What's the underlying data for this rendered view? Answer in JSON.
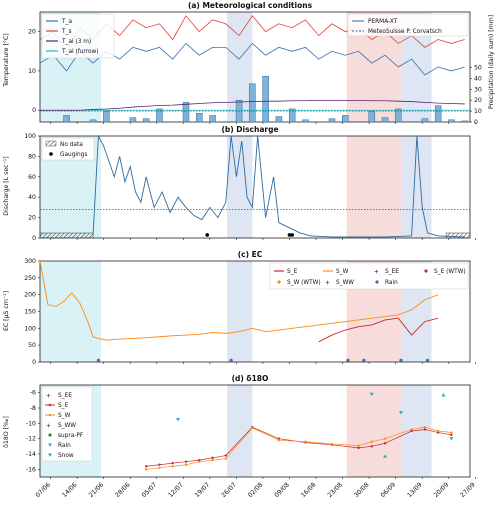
{
  "x_dates": [
    "07/06",
    "14/06",
    "21/06",
    "28/06",
    "05/07",
    "12/07",
    "19/07",
    "26/07",
    "02/08",
    "09/08",
    "16/08",
    "23/08",
    "30/08",
    "06/09",
    "13/09",
    "20/09",
    "27/09"
  ],
  "shaded_periods": [
    {
      "color": "#d9f2f5",
      "from": 0.0,
      "to": 2.3
    },
    {
      "color": "#dde6f2",
      "from": 7.05,
      "to": 8.0
    },
    {
      "color": "#f7dcdc",
      "from": 11.55,
      "to": 13.6
    },
    {
      "color": "#dde6f2",
      "from": 13.6,
      "to": 14.75
    }
  ],
  "panels": {
    "a": {
      "title": "(a) Meteorological conditions",
      "ylabel_left": "Temperature [°C]",
      "ylabel_right": "Precipitation (daily sum) [mm]",
      "y_ticks_left": [
        "20",
        "10",
        "0"
      ],
      "y_ticks_right": [
        "50",
        "40",
        "30",
        "20",
        "10",
        "0"
      ],
      "legend_left": [
        {
          "label": "T_a",
          "color": "#3b6fb6"
        },
        {
          "label": "T_s",
          "color": "#e0413b"
        },
        {
          "label": "T_ai (3 m)",
          "color": "#5b1f70"
        },
        {
          "label": "T_ai (furrow)",
          "color": "#22b6c3"
        }
      ],
      "legend_right": [
        {
          "label": "PERMA-XT",
          "style": "solid"
        },
        {
          "label": "MeteoSuisse P. Corvatsch",
          "style": "dashed"
        }
      ]
    },
    "b": {
      "title": "(b) Discharge",
      "ylabel": "Discharge [L sec⁻¹]",
      "y_ticks": [
        "100",
        "80",
        "60",
        "40",
        "20",
        "0"
      ],
      "legend": [
        {
          "label": "No data"
        },
        {
          "label": "Gaugings"
        }
      ]
    },
    "c": {
      "title": "(c) EC",
      "ylabel": "EC [μS cm⁻¹]",
      "y_ticks": [
        "300",
        "250",
        "200",
        "150",
        "100",
        "50",
        "0"
      ],
      "legend": [
        {
          "label": "S_E",
          "color": "#c8282c",
          "kind": "line"
        },
        {
          "label": "S_W",
          "color": "#ff8c1a",
          "kind": "line"
        },
        {
          "label": "S_EE",
          "color": "#c8282c",
          "kind": "plus"
        },
        {
          "label": "S_E (WTW)",
          "color": "#c8282c",
          "kind": "dot"
        },
        {
          "label": "S_W (WTW)",
          "color": "#ff8c1a",
          "kind": "dot"
        },
        {
          "label": "S_WW",
          "color": "#ff8c1a",
          "kind": "plus"
        },
        {
          "label": "Rain",
          "color": "#3b6fb6",
          "kind": "dot"
        }
      ]
    },
    "d": {
      "title": "(d) δ18O",
      "ylabel": "δ18O [‰]",
      "y_ticks": [
        "-6",
        "-8",
        "-10",
        "-12",
        "-14",
        "-16"
      ],
      "legend": [
        {
          "label": "S_EE",
          "color": "#c8282c",
          "kind": "plus"
        },
        {
          "label": "S_E",
          "color": "#c8282c",
          "kind": "dotline"
        },
        {
          "label": "S_W",
          "color": "#ff8c1a",
          "kind": "dotline"
        },
        {
          "label": "S_WW",
          "color": "#ff8c1a",
          "kind": "plus"
        },
        {
          "label": "supra-PF",
          "color": "#2e8b3e",
          "kind": "dot"
        },
        {
          "label": "Rain",
          "color": "#3ba5c8",
          "kind": "tri"
        },
        {
          "label": "Snow",
          "color": "#3ba5c8",
          "kind": "tri"
        }
      ]
    }
  },
  "chart_data": [
    {
      "type": "line",
      "title": "(a) Meteorological conditions",
      "ylabel": "Temperature [°C]",
      "y2label": "Precipitation (daily sum) [mm]",
      "ylim": [
        -3,
        25
      ],
      "y2lim": [
        0,
        55
      ],
      "x": [
        0,
        0.5,
        1,
        1.5,
        2,
        2.5,
        3,
        3.5,
        4,
        4.5,
        5,
        5.5,
        6,
        6.5,
        7,
        7.5,
        8,
        8.5,
        9,
        9.5,
        10,
        10.5,
        11,
        11.5,
        12,
        12.5,
        13,
        13.5,
        14,
        14.5,
        15,
        15.5,
        16
      ],
      "series": [
        {
          "name": "T_s",
          "values": [
            18,
            20,
            15,
            21,
            18,
            22,
            19,
            23,
            21,
            22,
            18,
            24,
            20,
            23,
            22,
            19,
            24,
            20,
            22,
            21,
            23,
            19,
            22,
            20,
            21,
            18,
            20,
            17,
            19,
            16,
            18,
            17,
            18
          ]
        },
        {
          "name": "T_a",
          "values": [
            12,
            14,
            10,
            15,
            12,
            15,
            13,
            16,
            15,
            16,
            13,
            17,
            14,
            16,
            16,
            13,
            17,
            14,
            16,
            15,
            16,
            13,
            15,
            14,
            15,
            12,
            14,
            11,
            13,
            9,
            11,
            10,
            11
          ]
        },
        {
          "name": "T_ai (3 m)",
          "values": [
            0,
            0,
            0,
            0,
            0.2,
            0.3,
            0.5,
            0.8,
            1.0,
            1.2,
            1.3,
            1.5,
            1.7,
            1.9,
            2.0,
            2.1,
            2.2,
            2.3,
            2.3,
            2.4,
            2.4,
            2.5,
            2.5,
            2.5,
            2.5,
            2.4,
            2.4,
            2.3,
            2.2,
            2.0,
            1.8,
            1.7,
            1.6
          ]
        },
        {
          "name": "T_ai (furrow)",
          "values": [
            0,
            0,
            0,
            0,
            0,
            0,
            0,
            0,
            0,
            0,
            0,
            0,
            0,
            0,
            0,
            0,
            0,
            0,
            0,
            0,
            0,
            0,
            0,
            0,
            0,
            0,
            0,
            0,
            0,
            0,
            0,
            0,
            0
          ]
        }
      ],
      "precipitation_mm": [
        0,
        0,
        6,
        0,
        2,
        10,
        0,
        4,
        3,
        12,
        0,
        18,
        8,
        6,
        0,
        20,
        35,
        42,
        5,
        12,
        2,
        0,
        3,
        6,
        0,
        10,
        4,
        12,
        0,
        3,
        15,
        2,
        1
      ]
    },
    {
      "type": "line",
      "title": "(b) Discharge",
      "ylabel": "Discharge [L sec⁻¹]",
      "ylim": [
        0,
        100
      ],
      "x": [
        2.0,
        2.2,
        2.4,
        2.6,
        2.8,
        3.0,
        3.2,
        3.4,
        3.6,
        3.8,
        4.0,
        4.3,
        4.6,
        4.9,
        5.2,
        5.5,
        5.8,
        6.1,
        6.4,
        6.7,
        7.0,
        7.2,
        7.4,
        7.6,
        7.8,
        8.0,
        8.2,
        8.5,
        8.8,
        9.0,
        9.4,
        9.8,
        10.2,
        11.0,
        12.0,
        13.0,
        14.0,
        14.2,
        14.4,
        14.6,
        15.0,
        16.0
      ],
      "values": [
        3,
        100,
        90,
        75,
        60,
        80,
        55,
        70,
        45,
        35,
        60,
        30,
        45,
        25,
        40,
        30,
        22,
        18,
        30,
        20,
        35,
        100,
        60,
        95,
        40,
        30,
        100,
        20,
        60,
        15,
        10,
        5,
        2,
        1,
        1,
        1,
        2,
        100,
        30,
        5,
        2,
        1
      ],
      "threshold": 28,
      "gaugings_x": [
        6.3,
        9.4,
        9.5
      ]
    },
    {
      "type": "line",
      "title": "(c) EC",
      "ylabel": "EC [μS cm⁻¹]",
      "ylim": [
        0,
        300
      ],
      "x": [
        0,
        0.3,
        0.6,
        0.9,
        1.2,
        1.5,
        1.8,
        2.0,
        2.2,
        2.5,
        3.0,
        3.5,
        4.0,
        4.5,
        5.0,
        5.5,
        6.0,
        6.5,
        7.0,
        7.5,
        8.0,
        8.5,
        9.0,
        9.5,
        10.0,
        10.5,
        11.0,
        11.5,
        12.0,
        12.5,
        13.0,
        13.5,
        14.0,
        14.5,
        15.0
      ],
      "series": [
        {
          "name": "S_W",
          "values": [
            300,
            170,
            165,
            180,
            205,
            175,
            120,
            75,
            70,
            65,
            68,
            70,
            72,
            75,
            78,
            80,
            82,
            88,
            85,
            90,
            100,
            90,
            95,
            100,
            105,
            110,
            115,
            120,
            125,
            130,
            135,
            140,
            155,
            185,
            200
          ]
        },
        {
          "name": "S_E",
          "values": [
            null,
            null,
            null,
            null,
            null,
            null,
            null,
            null,
            null,
            null,
            null,
            null,
            null,
            null,
            null,
            null,
            null,
            null,
            null,
            null,
            null,
            null,
            null,
            null,
            null,
            60,
            80,
            95,
            105,
            110,
            125,
            130,
            80,
            120,
            130
          ]
        }
      ],
      "rain_x": [
        2.2,
        7.2,
        11.6,
        12.2,
        13.6,
        14.6
      ],
      "rain_values": [
        5,
        5,
        5,
        5,
        5,
        5
      ]
    },
    {
      "type": "line",
      "title": "(d) δ18O",
      "ylabel": "δ18O [‰]",
      "ylim": [
        -17,
        -5
      ],
      "x": [
        4.0,
        4.5,
        5.0,
        5.5,
        6.0,
        6.5,
        7.0,
        8.0,
        9.0,
        10.0,
        11.0,
        12.0,
        12.5,
        13.0,
        14.0,
        14.5,
        15.0,
        15.5
      ],
      "series": [
        {
          "name": "S_E",
          "values": [
            -15.6,
            -15.4,
            -15.2,
            -15.0,
            -14.8,
            -14.5,
            -14.2,
            -10.5,
            -12.0,
            -12.5,
            -12.8,
            -13.2,
            -13.0,
            -12.6,
            -11.0,
            -10.8,
            -11.2,
            -11.5
          ]
        },
        {
          "name": "S_W",
          "values": [
            -16.0,
            -15.8,
            -15.6,
            -15.4,
            -15.0,
            -14.8,
            -14.6,
            -10.6,
            -12.2,
            -12.4,
            -12.7,
            -12.9,
            -12.4,
            -12.0,
            -10.8,
            -10.5,
            -11.0,
            -11.2
          ]
        }
      ],
      "rain_x": [
        5.2,
        12.5,
        13.6,
        15.5
      ],
      "rain_values": [
        -9.5,
        -6.2,
        -8.6,
        -12.0
      ],
      "snow_x": [
        13.0,
        15.2
      ],
      "snow_values": [
        -14.3,
        -6.3
      ]
    }
  ]
}
